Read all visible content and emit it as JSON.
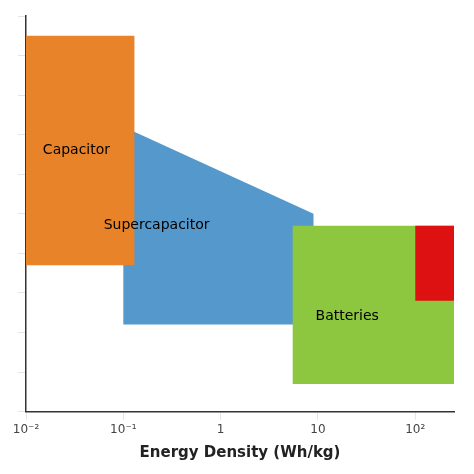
{
  "chart_data": {
    "type": "polygon",
    "xlabel": "Energy Density (Wh/kg)",
    "log": "x",
    "grid": false,
    "tick_labels": "x",
    "xlim": [
      0.01,
      250
    ],
    "ylim": [
      0,
      1
    ],
    "xticks": [
      {
        "value": 0.01,
        "label": "10⁻²"
      },
      {
        "value": 0.1,
        "label": "10⁻¹"
      },
      1,
      10,
      {
        "value": 100,
        "label": "10²"
      }
    ],
    "yticks": [
      0.0,
      0.1,
      0.2,
      0.3,
      0.4,
      0.5,
      0.6,
      0.7,
      0.8,
      0.9,
      1.0
    ],
    "series": [
      {
        "name": "Supercapacitor",
        "color": "#5599CC",
        "x": [
          0.1,
          0.1,
          9.0,
          9.0
        ],
        "y": [
          0.72,
          0.22,
          0.22,
          0.5
        ]
      },
      {
        "name": "Capacitor",
        "color": "#E8832A",
        "x": [
          0.01,
          0.13,
          0.13,
          0.01
        ],
        "y": [
          0.37,
          0.37,
          0.95,
          0.95
        ]
      },
      {
        "name": "Batteries",
        "color": "#8DC63F",
        "x": [
          5.5,
          250,
          250,
          5.5
        ],
        "y": [
          0.07,
          0.07,
          0.47,
          0.47
        ]
      },
      {
        "color": "#DD1111",
        "x": [
          100,
          250,
          250,
          100
        ],
        "y": [
          0.28,
          0.28,
          0.47,
          0.47
        ]
      }
    ],
    "annotations": [
      {
        "text": "Capacitor",
        "x": 0.033,
        "y": 0.66
      },
      {
        "text": "Supercapacitor",
        "x": 0.22,
        "y": 0.47
      },
      {
        "text": "Batteries",
        "x": 20,
        "y": 0.24
      }
    ]
  }
}
